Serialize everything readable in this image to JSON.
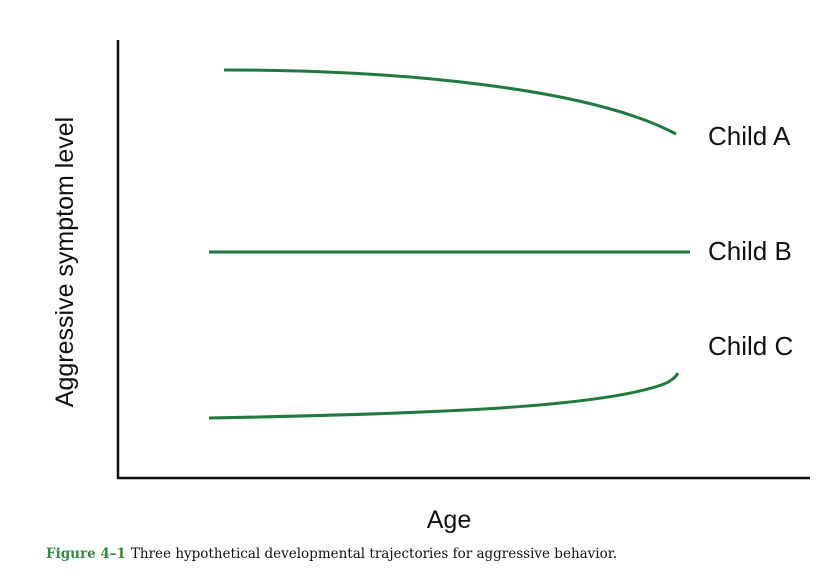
{
  "figure": {
    "y_axis_label": "Aggressive symptom level",
    "x_axis_label": "Age",
    "curves": [
      {
        "label": "Child A"
      },
      {
        "label": "Child B"
      },
      {
        "label": "Child C"
      }
    ],
    "caption": {
      "number": "Figure 4–1",
      "text": "Three hypothetical developmental trajectories for aggressive behavior."
    }
  }
}
